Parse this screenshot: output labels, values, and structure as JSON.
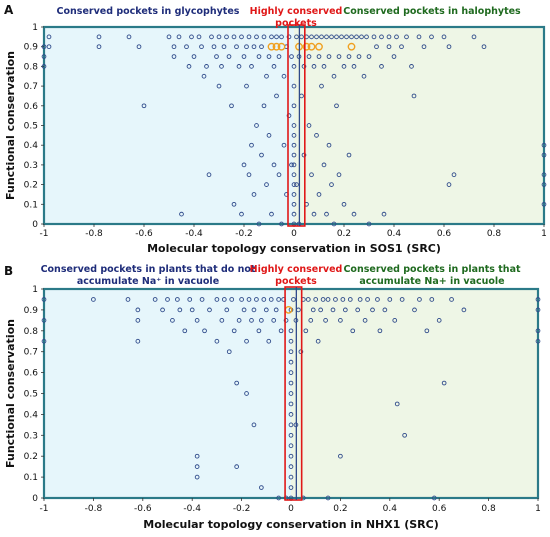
{
  "colors": {
    "left_region": "#e6f6fb",
    "right_region": "#eef6e6",
    "frame": "#2b7a88",
    "point": "#2e4a8a",
    "highlight_point": "#f0a020",
    "center_box": "#e01818",
    "left_text": "#1f2d7a",
    "center_text": "#e01818",
    "right_text": "#1f6a1f"
  },
  "chart_data": [
    {
      "type": "scatter",
      "panel": "A",
      "xlabel": "Molecular topology conservation in SOS1 (SRC)",
      "ylabel": "Functional conservation",
      "xlim": [
        -1,
        1
      ],
      "ylim": [
        0,
        1
      ],
      "x_ticks": [
        "-1",
        "-0.8",
        "-0.6",
        "-0.4",
        "-0.2",
        "0",
        "0.2",
        "0.4",
        "0.6",
        "0.8",
        "1"
      ],
      "y_ticks": [
        "0",
        "0.1",
        "0.2",
        "0.3",
        "0.4",
        "0.5",
        "0.6",
        "0.7",
        "0.8",
        "0.9",
        "1"
      ],
      "annotations": {
        "left": [
          "Conserved pockets in glycophytes"
        ],
        "center": [
          "Highly conserved",
          "pockets"
        ],
        "right": [
          "Conserved pockets in halophytes"
        ]
      },
      "highlight_points": [
        [
          -0.09,
          0.9
        ],
        [
          -0.07,
          0.9
        ],
        [
          -0.05,
          0.9
        ],
        [
          0.02,
          0.9
        ],
        [
          0.05,
          0.9
        ],
        [
          0.07,
          0.9
        ],
        [
          0.1,
          0.9
        ],
        [
          0.23,
          0.9
        ]
      ],
      "points": [
        [
          -1,
          0.9
        ],
        [
          -1,
          0.85
        ],
        [
          -1,
          0.8
        ],
        [
          -0.98,
          0.95
        ],
        [
          -0.98,
          0.9
        ],
        [
          -0.78,
          0.95
        ],
        [
          -0.78,
          0.9
        ],
        [
          -0.66,
          0.95
        ],
        [
          -0.62,
          0.9
        ],
        [
          -0.6,
          0.6
        ],
        [
          -0.5,
          0.95
        ],
        [
          -0.48,
          0.9
        ],
        [
          -0.48,
          0.85
        ],
        [
          -0.46,
          0.95
        ],
        [
          -0.45,
          0.05
        ],
        [
          -0.43,
          0.9
        ],
        [
          -0.42,
          0.8
        ],
        [
          -0.41,
          0.95
        ],
        [
          -0.4,
          0.85
        ],
        [
          -0.38,
          0.95
        ],
        [
          -0.37,
          0.9
        ],
        [
          -0.36,
          0.75
        ],
        [
          -0.35,
          0.8
        ],
        [
          -0.34,
          0.25
        ],
        [
          -0.33,
          0.95
        ],
        [
          -0.32,
          0.9
        ],
        [
          -0.31,
          0.85
        ],
        [
          -0.3,
          0.95
        ],
        [
          -0.3,
          0.7
        ],
        [
          -0.29,
          0.8
        ],
        [
          -0.28,
          0.9
        ],
        [
          -0.27,
          0.95
        ],
        [
          -0.26,
          0.85
        ],
        [
          -0.25,
          0.6
        ],
        [
          -0.24,
          0.95
        ],
        [
          -0.24,
          0.1
        ],
        [
          -0.23,
          0.9
        ],
        [
          -0.22,
          0.8
        ],
        [
          -0.21,
          0.95
        ],
        [
          -0.21,
          0.05
        ],
        [
          -0.2,
          0.85
        ],
        [
          -0.2,
          0.3
        ],
        [
          -0.19,
          0.9
        ],
        [
          -0.19,
          0.7
        ],
        [
          -0.18,
          0.95
        ],
        [
          -0.18,
          0.25
        ],
        [
          -0.17,
          0.8
        ],
        [
          -0.17,
          0.4
        ],
        [
          -0.16,
          0.9
        ],
        [
          -0.16,
          0.15
        ],
        [
          -0.15,
          0.95
        ],
        [
          -0.15,
          0.5
        ],
        [
          -0.14,
          0.85
        ],
        [
          -0.14,
          0.0
        ],
        [
          -0.13,
          0.9
        ],
        [
          -0.13,
          0.35
        ],
        [
          -0.12,
          0.95
        ],
        [
          -0.12,
          0.6
        ],
        [
          -0.11,
          0.75
        ],
        [
          -0.11,
          0.2
        ],
        [
          -0.1,
          0.85
        ],
        [
          -0.1,
          0.45
        ],
        [
          -0.09,
          0.95
        ],
        [
          -0.09,
          0.05
        ],
        [
          -0.08,
          0.8
        ],
        [
          -0.08,
          0.3
        ],
        [
          -0.07,
          0.95
        ],
        [
          -0.07,
          0.65
        ],
        [
          -0.06,
          0.85
        ],
        [
          -0.06,
          0.25
        ],
        [
          -0.05,
          0.95
        ],
        [
          -0.05,
          0.0
        ],
        [
          -0.04,
          0.75
        ],
        [
          -0.04,
          0.4
        ],
        [
          -0.03,
          0.9
        ],
        [
          -0.03,
          0.15
        ],
        [
          -0.02,
          0.95
        ],
        [
          -0.02,
          0.55
        ],
        [
          -0.01,
          0.85
        ],
        [
          -0.01,
          0.3
        ],
        [
          0,
          0.8
        ],
        [
          0,
          0.7
        ],
        [
          0,
          0.6
        ],
        [
          0,
          0.5
        ],
        [
          0,
          0.45
        ],
        [
          0,
          0.4
        ],
        [
          0,
          0.35
        ],
        [
          0,
          0.3
        ],
        [
          0,
          0.25
        ],
        [
          0,
          0.2
        ],
        [
          0,
          0.15
        ],
        [
          0,
          0.1
        ],
        [
          0,
          0.05
        ],
        [
          0,
          0.0
        ],
        [
          0.01,
          0.95
        ],
        [
          0.01,
          0.2
        ],
        [
          0.02,
          0.85
        ],
        [
          0.02,
          0.0
        ],
        [
          0.03,
          0.95
        ],
        [
          0.03,
          0.65
        ],
        [
          0.04,
          0.8
        ],
        [
          0.04,
          0.35
        ],
        [
          0.05,
          0.95
        ],
        [
          0.05,
          0.1
        ],
        [
          0.06,
          0.85
        ],
        [
          0.06,
          0.5
        ],
        [
          0.07,
          0.95
        ],
        [
          0.07,
          0.25
        ],
        [
          0.08,
          0.8
        ],
        [
          0.08,
          0.05
        ],
        [
          0.09,
          0.95
        ],
        [
          0.09,
          0.45
        ],
        [
          0.1,
          0.85
        ],
        [
          0.1,
          0.15
        ],
        [
          0.11,
          0.95
        ],
        [
          0.11,
          0.7
        ],
        [
          0.12,
          0.8
        ],
        [
          0.12,
          0.3
        ],
        [
          0.13,
          0.95
        ],
        [
          0.13,
          0.05
        ],
        [
          0.14,
          0.85
        ],
        [
          0.14,
          0.4
        ],
        [
          0.15,
          0.95
        ],
        [
          0.15,
          0.2
        ],
        [
          0.16,
          0.75
        ],
        [
          0.16,
          0.0
        ],
        [
          0.17,
          0.95
        ],
        [
          0.17,
          0.6
        ],
        [
          0.18,
          0.85
        ],
        [
          0.18,
          0.25
        ],
        [
          0.19,
          0.95
        ],
        [
          0.2,
          0.8
        ],
        [
          0.2,
          0.1
        ],
        [
          0.21,
          0.95
        ],
        [
          0.22,
          0.85
        ],
        [
          0.22,
          0.35
        ],
        [
          0.23,
          0.95
        ],
        [
          0.24,
          0.8
        ],
        [
          0.24,
          0.05
        ],
        [
          0.25,
          0.95
        ],
        [
          0.26,
          0.85
        ],
        [
          0.27,
          0.95
        ],
        [
          0.28,
          0.75
        ],
        [
          0.29,
          0.95
        ],
        [
          0.3,
          0.85
        ],
        [
          0.3,
          0.0
        ],
        [
          0.32,
          0.95
        ],
        [
          0.33,
          0.9
        ],
        [
          0.35,
          0.95
        ],
        [
          0.35,
          0.8
        ],
        [
          0.36,
          0.05
        ],
        [
          0.38,
          0.95
        ],
        [
          0.38,
          0.9
        ],
        [
          0.4,
          0.85
        ],
        [
          0.41,
          0.95
        ],
        [
          0.43,
          0.9
        ],
        [
          0.45,
          0.95
        ],
        [
          0.47,
          0.8
        ],
        [
          0.48,
          0.65
        ],
        [
          0.5,
          0.95
        ],
        [
          0.52,
          0.9
        ],
        [
          0.55,
          0.95
        ],
        [
          0.6,
          0.95
        ],
        [
          0.62,
          0.9
        ],
        [
          0.62,
          0.2
        ],
        [
          0.64,
          0.25
        ],
        [
          0.72,
          0.95
        ],
        [
          0.76,
          0.9
        ],
        [
          1,
          0.4
        ],
        [
          1,
          0.35
        ],
        [
          1,
          0.25
        ],
        [
          1,
          0.2
        ],
        [
          1,
          0.1
        ]
      ]
    },
    {
      "type": "scatter",
      "panel": "B",
      "xlabel": "Molecular topology conservation in NHX1 (SRC)",
      "ylabel": "Functional conservation",
      "xlim": [
        -1,
        1
      ],
      "ylim": [
        0,
        1
      ],
      "x_ticks": [
        "-1",
        "-0.8",
        "-0.6",
        "-0.4",
        "-0.2",
        "0",
        "0.2",
        "0.4",
        "0.6",
        "0.8",
        "1"
      ],
      "y_ticks": [
        "0",
        "0.1",
        "0.2",
        "0.3",
        "0.4",
        "0.5",
        "0.6",
        "0.7",
        "0.8",
        "0.9",
        "1"
      ],
      "annotations": {
        "left": [
          "Conserved pockets in plants that do not",
          "accumulate Na⁺ in vacuole"
        ],
        "center": [
          "Highly conserved",
          "pockets"
        ],
        "right": [
          "Conserved pockets in plants that",
          "accumulate Na+ in vacuole"
        ]
      },
      "highlight_points": [
        [
          -0.01,
          0.9
        ]
      ],
      "points": [
        [
          -1,
          0.95
        ],
        [
          -1,
          0.85
        ],
        [
          -1,
          0.75
        ],
        [
          -0.8,
          0.95
        ],
        [
          -0.66,
          0.95
        ],
        [
          -0.62,
          0.9
        ],
        [
          -0.62,
          0.85
        ],
        [
          -0.62,
          0.75
        ],
        [
          -0.55,
          0.95
        ],
        [
          -0.52,
          0.9
        ],
        [
          -0.5,
          0.95
        ],
        [
          -0.48,
          0.85
        ],
        [
          -0.46,
          0.95
        ],
        [
          -0.45,
          0.9
        ],
        [
          -0.43,
          0.8
        ],
        [
          -0.41,
          0.95
        ],
        [
          -0.4,
          0.9
        ],
        [
          -0.38,
          0.85
        ],
        [
          -0.38,
          0.2
        ],
        [
          -0.38,
          0.15
        ],
        [
          -0.38,
          0.1
        ],
        [
          -0.36,
          0.95
        ],
        [
          -0.35,
          0.8
        ],
        [
          -0.33,
          0.9
        ],
        [
          -0.3,
          0.95
        ],
        [
          -0.3,
          0.75
        ],
        [
          -0.28,
          0.85
        ],
        [
          -0.27,
          0.95
        ],
        [
          -0.26,
          0.9
        ],
        [
          -0.25,
          0.7
        ],
        [
          -0.24,
          0.95
        ],
        [
          -0.23,
          0.8
        ],
        [
          -0.22,
          0.55
        ],
        [
          -0.22,
          0.15
        ],
        [
          -0.21,
          0.85
        ],
        [
          -0.2,
          0.95
        ],
        [
          -0.19,
          0.9
        ],
        [
          -0.18,
          0.75
        ],
        [
          -0.18,
          0.5
        ],
        [
          -0.17,
          0.95
        ],
        [
          -0.16,
          0.85
        ],
        [
          -0.15,
          0.9
        ],
        [
          -0.15,
          0.35
        ],
        [
          -0.14,
          0.95
        ],
        [
          -0.13,
          0.8
        ],
        [
          -0.12,
          0.85
        ],
        [
          -0.12,
          0.05
        ],
        [
          -0.11,
          0.95
        ],
        [
          -0.1,
          0.9
        ],
        [
          -0.09,
          0.75
        ],
        [
          -0.08,
          0.95
        ],
        [
          -0.07,
          0.85
        ],
        [
          -0.06,
          0.9
        ],
        [
          -0.05,
          0.95
        ],
        [
          -0.05,
          0.0
        ],
        [
          -0.04,
          0.8
        ],
        [
          -0.03,
          0.95
        ],
        [
          -0.02,
          0.85
        ],
        [
          -0.02,
          0.0
        ],
        [
          0,
          0.9
        ],
        [
          0,
          0.8
        ],
        [
          0,
          0.75
        ],
        [
          0,
          0.7
        ],
        [
          0,
          0.65
        ],
        [
          0,
          0.6
        ],
        [
          0,
          0.55
        ],
        [
          0,
          0.5
        ],
        [
          0,
          0.45
        ],
        [
          0,
          0.4
        ],
        [
          0,
          0.35
        ],
        [
          0,
          0.3
        ],
        [
          0,
          0.25
        ],
        [
          0,
          0.2
        ],
        [
          0,
          0.15
        ],
        [
          0,
          0.1
        ],
        [
          0,
          0.05
        ],
        [
          0,
          0.0
        ],
        [
          0.01,
          0.95
        ],
        [
          0.02,
          0.85
        ],
        [
          0.02,
          0.35
        ],
        [
          0.03,
          0.9
        ],
        [
          0.04,
          0.7
        ],
        [
          0.05,
          0.95
        ],
        [
          0.05,
          0.0
        ],
        [
          0.06,
          0.8
        ],
        [
          0.07,
          0.95
        ],
        [
          0.08,
          0.85
        ],
        [
          0.09,
          0.9
        ],
        [
          0.1,
          0.95
        ],
        [
          0.11,
          0.75
        ],
        [
          0.12,
          0.9
        ],
        [
          0.13,
          0.95
        ],
        [
          0.14,
          0.85
        ],
        [
          0.15,
          0.95
        ],
        [
          0.15,
          0.0
        ],
        [
          0.17,
          0.9
        ],
        [
          0.18,
          0.95
        ],
        [
          0.2,
          0.85
        ],
        [
          0.2,
          0.2
        ],
        [
          0.21,
          0.95
        ],
        [
          0.22,
          0.9
        ],
        [
          0.24,
          0.95
        ],
        [
          0.25,
          0.8
        ],
        [
          0.27,
          0.9
        ],
        [
          0.28,
          0.95
        ],
        [
          0.3,
          0.85
        ],
        [
          0.31,
          0.95
        ],
        [
          0.33,
          0.9
        ],
        [
          0.35,
          0.95
        ],
        [
          0.36,
          0.8
        ],
        [
          0.38,
          0.9
        ],
        [
          0.4,
          0.95
        ],
        [
          0.42,
          0.85
        ],
        [
          0.43,
          0.45
        ],
        [
          0.45,
          0.95
        ],
        [
          0.46,
          0.3
        ],
        [
          0.5,
          0.9
        ],
        [
          0.52,
          0.95
        ],
        [
          0.55,
          0.8
        ],
        [
          0.57,
          0.95
        ],
        [
          0.58,
          0.0
        ],
        [
          0.6,
          0.85
        ],
        [
          0.62,
          0.55
        ],
        [
          0.65,
          0.95
        ],
        [
          0.7,
          0.9
        ],
        [
          1,
          0.95
        ],
        [
          1,
          0.9
        ],
        [
          1,
          0.8
        ],
        [
          1,
          0.75
        ]
      ]
    }
  ]
}
